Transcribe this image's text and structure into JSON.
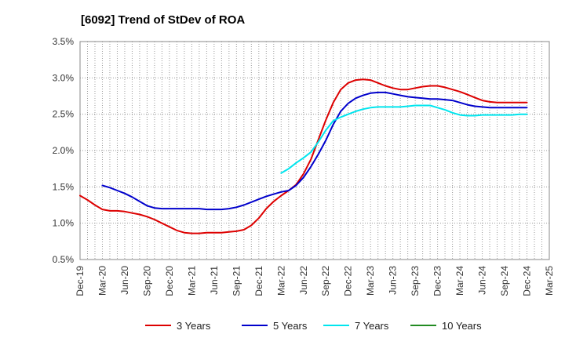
{
  "chart_data": {
    "type": "line",
    "title": "[6092]  Trend of StDev of ROA",
    "xlabel": "",
    "ylabel": "",
    "grid": true,
    "legend_position": "bottom",
    "y_tick_labels": [
      "0.5%",
      "1.0%",
      "1.5%",
      "2.0%",
      "2.5%",
      "3.0%",
      "3.5%"
    ],
    "y_ticks": [
      0.5,
      1.0,
      1.5,
      2.0,
      2.5,
      3.0,
      3.5
    ],
    "ylim": [
      0.5,
      3.5
    ],
    "x_tick_labels": [
      "Dec-19",
      "Mar-20",
      "Jun-20",
      "Sep-20",
      "Dec-20",
      "Mar-21",
      "Jun-21",
      "Sep-21",
      "Dec-21",
      "Mar-22",
      "Jun-22",
      "Sep-22",
      "Dec-22",
      "Mar-23",
      "Jun-23",
      "Sep-23",
      "Dec-23",
      "Mar-24",
      "Jun-24",
      "Sep-24",
      "Dec-24",
      "Mar-25"
    ],
    "x_tick_index": [
      0,
      3,
      6,
      9,
      12,
      15,
      18,
      21,
      24,
      27,
      30,
      33,
      36,
      39,
      42,
      45,
      48,
      51,
      54,
      57,
      60,
      63
    ],
    "xlim": [
      0,
      63
    ],
    "series": [
      {
        "name": "3 Years",
        "color": "#dd0000",
        "x": [
          0,
          1,
          2,
          3,
          4,
          5,
          6,
          7,
          8,
          9,
          10,
          11,
          12,
          13,
          14,
          15,
          16,
          17,
          18,
          19,
          20,
          21,
          22,
          23,
          24,
          25,
          26,
          27,
          28,
          29,
          30,
          31,
          32,
          33,
          34,
          35,
          36,
          37,
          38,
          39,
          40,
          41,
          42,
          43,
          44,
          45,
          46,
          47,
          48,
          49,
          50,
          51,
          52,
          53,
          54,
          55,
          56,
          57,
          58,
          59,
          60
        ],
        "values": [
          1.38,
          1.32,
          1.25,
          1.19,
          1.17,
          1.17,
          1.16,
          1.14,
          1.12,
          1.09,
          1.05,
          1.0,
          0.95,
          0.9,
          0.87,
          0.86,
          0.86,
          0.87,
          0.87,
          0.87,
          0.88,
          0.89,
          0.91,
          0.97,
          1.07,
          1.2,
          1.3,
          1.38,
          1.45,
          1.53,
          1.68,
          1.88,
          2.15,
          2.42,
          2.66,
          2.84,
          2.93,
          2.97,
          2.98,
          2.97,
          2.93,
          2.89,
          2.86,
          2.84,
          2.84,
          2.86,
          2.88,
          2.89,
          2.89,
          2.87,
          2.84,
          2.81,
          2.77,
          2.73,
          2.69,
          2.67,
          2.66,
          2.66,
          2.66,
          2.66,
          2.66
        ]
      },
      {
        "name": "5 Years",
        "color": "#0000cc",
        "x": [
          3,
          4,
          5,
          6,
          7,
          8,
          9,
          10,
          11,
          12,
          13,
          14,
          15,
          16,
          17,
          18,
          19,
          20,
          21,
          22,
          23,
          24,
          25,
          26,
          27,
          28,
          29,
          30,
          31,
          32,
          33,
          34,
          35,
          36,
          37,
          38,
          39,
          40,
          41,
          42,
          43,
          44,
          45,
          46,
          47,
          48,
          49,
          50,
          51,
          52,
          53,
          54,
          55,
          56,
          57,
          58,
          59,
          60
        ],
        "values": [
          1.52,
          1.49,
          1.45,
          1.41,
          1.36,
          1.3,
          1.24,
          1.21,
          1.2,
          1.2,
          1.2,
          1.2,
          1.2,
          1.2,
          1.19,
          1.19,
          1.19,
          1.2,
          1.22,
          1.25,
          1.29,
          1.33,
          1.37,
          1.4,
          1.43,
          1.45,
          1.52,
          1.63,
          1.78,
          1.95,
          2.14,
          2.36,
          2.54,
          2.65,
          2.72,
          2.76,
          2.79,
          2.8,
          2.8,
          2.78,
          2.76,
          2.74,
          2.73,
          2.72,
          2.71,
          2.71,
          2.7,
          2.69,
          2.66,
          2.63,
          2.61,
          2.6,
          2.59,
          2.59,
          2.59,
          2.59,
          2.59,
          2.59
        ]
      },
      {
        "name": "7 Years",
        "color": "#00e5ee",
        "x": [
          27,
          28,
          29,
          30,
          31,
          32,
          33,
          34,
          35,
          36,
          37,
          38,
          39,
          40,
          41,
          42,
          43,
          44,
          45,
          46,
          47,
          48,
          49,
          50,
          51,
          52,
          53,
          54,
          55,
          56,
          57,
          58,
          59,
          60
        ],
        "values": [
          1.69,
          1.75,
          1.83,
          1.9,
          1.98,
          2.12,
          2.28,
          2.41,
          2.46,
          2.5,
          2.54,
          2.57,
          2.59,
          2.6,
          2.6,
          2.6,
          2.6,
          2.61,
          2.62,
          2.62,
          2.62,
          2.59,
          2.56,
          2.52,
          2.49,
          2.48,
          2.48,
          2.49,
          2.49,
          2.49,
          2.49,
          2.49,
          2.5,
          2.5
        ]
      },
      {
        "name": "10 Years",
        "color": "#228b22",
        "x": [],
        "values": []
      }
    ]
  }
}
